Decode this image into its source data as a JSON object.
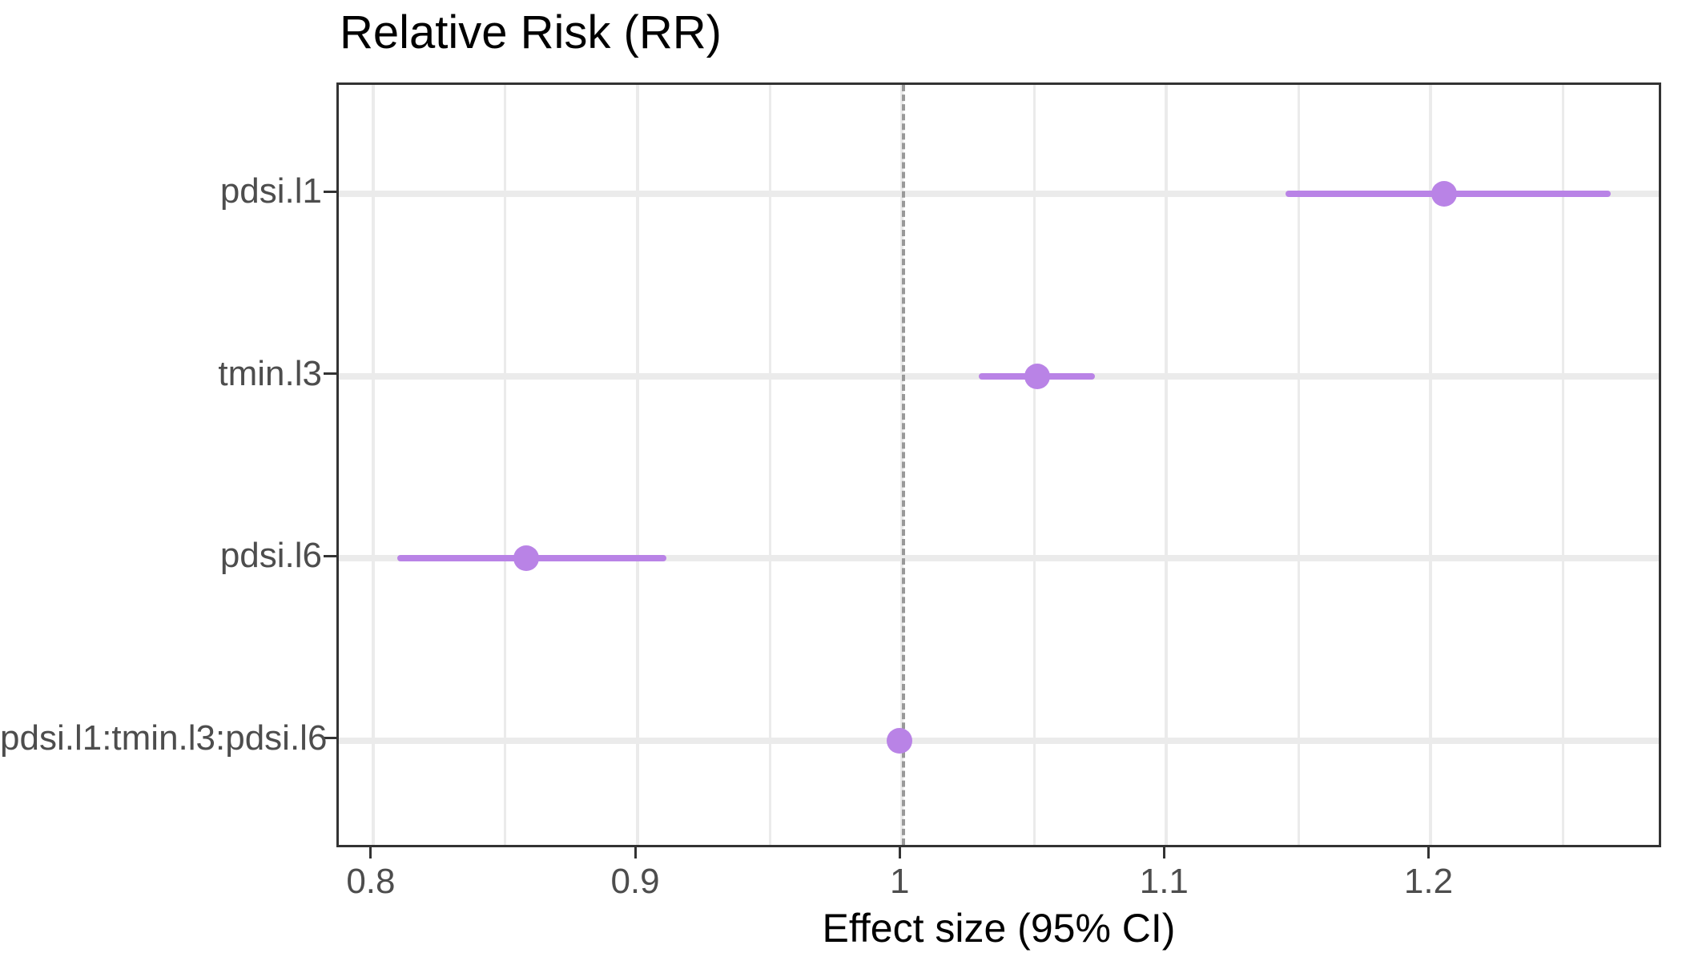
{
  "chart_data": {
    "type": "scatter",
    "subtype": "forest-plot-pointrange",
    "title": "Relative Risk (RR)",
    "xlabel": "Effect size (95% CI)",
    "ylabel": "",
    "categories": [
      "pdsi.l1",
      "tmin.l3",
      "pdsi.l6",
      "pdsi.l1:tmin.l3:pdsi.l6"
    ],
    "series": [
      {
        "name": "Relative Risk",
        "values": [
          1.205,
          1.051,
          0.858,
          0.999
        ],
        "ci_low": [
          1.145,
          1.029,
          0.809,
          0.999
        ],
        "ci_high": [
          1.268,
          1.073,
          0.911,
          0.999
        ]
      }
    ],
    "reference_line": {
      "x": 1,
      "style": "dashed"
    },
    "xlim": [
      0.787,
      1.288
    ],
    "x_tick_values": [
      0.8,
      0.9,
      1.0,
      1.1,
      1.2
    ],
    "x_tick_labels": [
      "0.8",
      "0.9",
      "1",
      "1.1",
      "1.2"
    ],
    "x_minor_tick_values": [
      0.85,
      0.95,
      1.05,
      1.15,
      1.25
    ],
    "grid": true,
    "legend": false,
    "colors": {
      "point": "#b983e6",
      "ci_line": "#b983e6",
      "grid": "#ebebeb",
      "panel_border": "#333333",
      "reference_line": "#999999",
      "tick_text": "#4d4d4d",
      "title_text": "#000000"
    }
  }
}
